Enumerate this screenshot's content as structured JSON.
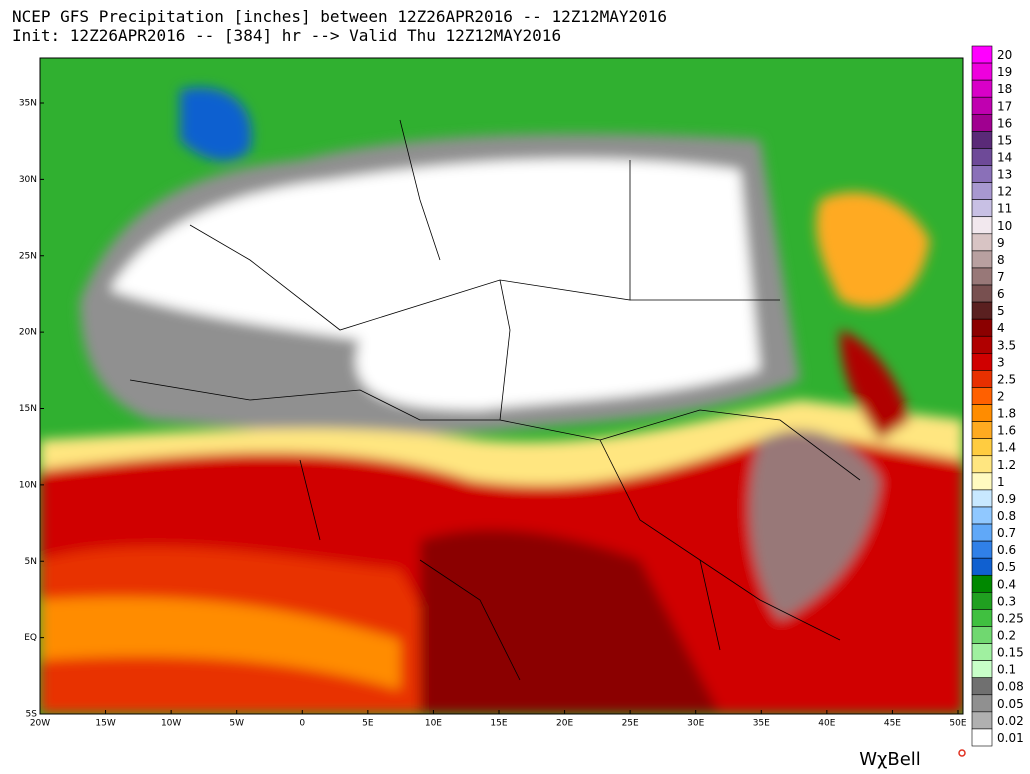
{
  "header": {
    "line1": "NCEP GFS Precipitation [inches] between 12Z26APR2016 -- 12Z12MAY2016",
    "line2": "Init: 12Z26APR2016 -- [384] hr --> Valid Thu 12Z12MAY2016"
  },
  "map": {
    "lat_labels": [
      "35N",
      "30N",
      "25N",
      "20N",
      "15N",
      "10N",
      "5N",
      "EQ",
      "5S"
    ],
    "lon_labels": [
      "20W",
      "15W",
      "10W",
      "5W",
      "0",
      "5E",
      "10E",
      "15E",
      "20E",
      "25E",
      "30E",
      "35E",
      "40E",
      "45E",
      "50E"
    ]
  },
  "colorbar": [
    {
      "label": "20",
      "color": "#ff00ff"
    },
    {
      "label": "19",
      "color": "#ee00dd"
    },
    {
      "label": "18",
      "color": "#d800c8"
    },
    {
      "label": "17",
      "color": "#c000b0"
    },
    {
      "label": "16",
      "color": "#a00090"
    },
    {
      "label": "15",
      "color": "#5a2a78"
    },
    {
      "label": "14",
      "color": "#6e4a98"
    },
    {
      "label": "13",
      "color": "#8a70b8"
    },
    {
      "label": "12",
      "color": "#a898d0"
    },
    {
      "label": "11",
      "color": "#c8c0e4"
    },
    {
      "label": "10",
      "color": "#f2e8ee"
    },
    {
      "label": "9",
      "color": "#d8c4c4"
    },
    {
      "label": "8",
      "color": "#b8a0a0"
    },
    {
      "label": "7",
      "color": "#987878"
    },
    {
      "label": "6",
      "color": "#785050"
    },
    {
      "label": "5",
      "color": "#5a2020"
    },
    {
      "label": "4",
      "color": "#8b0000"
    },
    {
      "label": "3.5",
      "color": "#b00000"
    },
    {
      "label": "3",
      "color": "#d00000"
    },
    {
      "label": "2.5",
      "color": "#e83000"
    },
    {
      "label": "2",
      "color": "#ff6000"
    },
    {
      "label": "1.8",
      "color": "#ff8c00"
    },
    {
      "label": "1.6",
      "color": "#ffaa20"
    },
    {
      "label": "1.4",
      "color": "#ffcc40"
    },
    {
      "label": "1.2",
      "color": "#ffe680"
    },
    {
      "label": "1",
      "color": "#fffac0"
    },
    {
      "label": "0.9",
      "color": "#c8e8ff"
    },
    {
      "label": "0.8",
      "color": "#90c8ff"
    },
    {
      "label": "0.7",
      "color": "#60a8f8"
    },
    {
      "label": "0.6",
      "color": "#3080e8"
    },
    {
      "label": "0.5",
      "color": "#1060d0"
    },
    {
      "label": "0.4",
      "color": "#008800"
    },
    {
      "label": "0.3",
      "color": "#20a020"
    },
    {
      "label": "0.25",
      "color": "#40c040"
    },
    {
      "label": "0.2",
      "color": "#70d870"
    },
    {
      "label": "0.15",
      "color": "#a0f0a0"
    },
    {
      "label": "0.1",
      "color": "#c8ffc8"
    },
    {
      "label": "0.08",
      "color": "#707070"
    },
    {
      "label": "0.05",
      "color": "#909090"
    },
    {
      "label": "0.02",
      "color": "#b0b0b0"
    },
    {
      "label": "0.01",
      "color": "#ffffff"
    }
  ],
  "logo": "WχBell"
}
